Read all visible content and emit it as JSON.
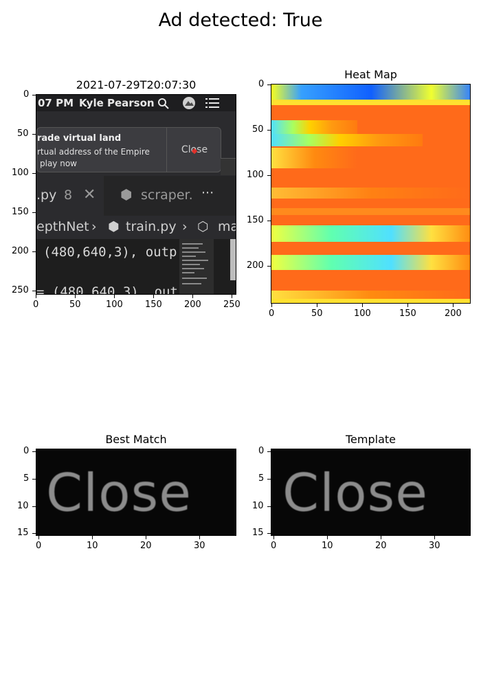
{
  "figure": {
    "suptitle": "Ad detected: True"
  },
  "screenshot_panel": {
    "title": "2021-07-29T20:07:30",
    "x_ticks": [
      "0",
      "50",
      "100",
      "150",
      "200",
      "250"
    ],
    "y_ticks": [
      "0",
      "50",
      "100",
      "150",
      "200",
      "250"
    ],
    "screen": {
      "menubar_time": "07 PM",
      "menubar_user": "Kyle Pearson",
      "search_icon": "search-icon",
      "avatar_icon": "avatar-icon",
      "menu_icon": "list-menu-icon",
      "banner_title": "rade virtual land",
      "banner_line1": "rtual address of the Empire",
      "banner_line2": "play now",
      "banner_close": "Close",
      "tab1_name": ".py",
      "tab1_count": "8",
      "tab2_name": "scraper.",
      "tab_more": "···",
      "crumb1": "epthNet",
      "crumb2": "train.py",
      "crumb3": "ma",
      "code_line1": "(480,640,3), outp",
      "code_line2": "= (480,640,3), out"
    }
  },
  "heatmap_panel": {
    "title": "Heat Map",
    "x_ticks": [
      "0",
      "50",
      "100",
      "150",
      "200"
    ],
    "y_ticks": [
      "0",
      "50",
      "100",
      "150",
      "200"
    ],
    "colormap": "jet"
  },
  "best_match_panel": {
    "title": "Best Match",
    "text_shown": "Close",
    "x_ticks": [
      "0",
      "10",
      "20",
      "30"
    ],
    "y_ticks": [
      "0",
      "5",
      "10",
      "15"
    ]
  },
  "template_panel": {
    "title": "Template",
    "text_shown": "Close",
    "x_ticks": [
      "0",
      "10",
      "20",
      "30"
    ],
    "y_ticks": [
      "0",
      "5",
      "10",
      "15"
    ]
  }
}
